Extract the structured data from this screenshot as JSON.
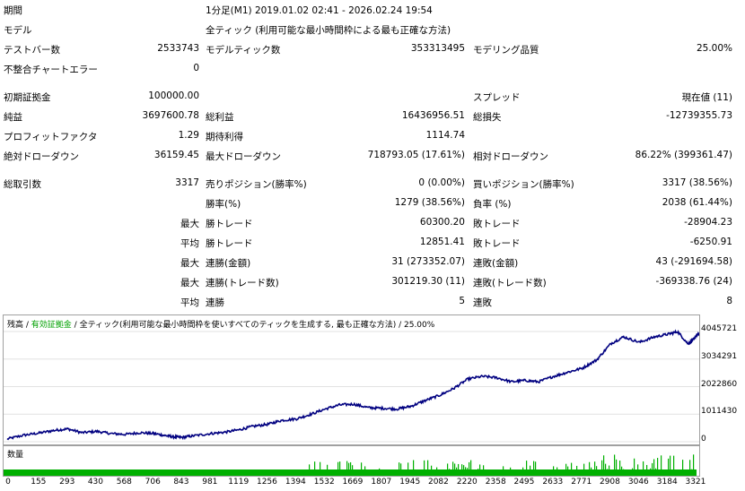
{
  "report": {
    "rows": [
      {
        "label": "期間",
        "value": "1分足(M1) 2019.01.02 02:41 - 2026.02.24 19:54",
        "top": 4
      },
      {
        "label": "モデル",
        "value": "全ティック (利用可能な最小時間枠による最も正確な方法)",
        "top": 26
      },
      {
        "label": "テストバー数",
        "value": "2533743",
        "label2": "モデルティック数",
        "value2": "353313495",
        "label3": "モデリング品質",
        "value3": "25.00%",
        "top": 48
      },
      {
        "label": "不整合チャートエラー",
        "value": "0",
        "top": 70
      },
      {
        "label": "初期証拠金",
        "value": "100000.00",
        "label3": "スプレッド",
        "value3": "現在値 (11)",
        "top": 101
      },
      {
        "label": "純益",
        "value": "3697600.78",
        "label2": "総利益",
        "value2": "16436956.51",
        "label3": "総損失",
        "value3": "-12739355.73",
        "top": 123
      },
      {
        "label": "プロフィットファクタ",
        "value": "1.29",
        "label2": "期待利得",
        "value2": "1114.74",
        "top": 145
      },
      {
        "label": "絶対ドローダウン",
        "value": "36159.45",
        "label2": "最大ドローダウン",
        "value2": "718793.05 (17.61%)",
        "label3": "相対ドローダウン",
        "value3": "86.22% (399361.47)",
        "top": 167
      },
      {
        "label": "総取引数",
        "value": "3317",
        "label2": "売りポジション(勝率%)",
        "value2": "0 (0.00%)",
        "label3": "買いポジション(勝率%)",
        "value3": "3317 (38.56%)",
        "top": 198
      },
      {
        "label2": "勝率(%)",
        "value2": "1279 (38.56%)",
        "label3": "負率 (%)",
        "value3": "2038 (61.44%)",
        "top": 220
      },
      {
        "prefix": "最大",
        "label2": "勝トレード",
        "value2": "60300.20",
        "label3": "敗トレード",
        "value3": "-28904.23",
        "top": 242
      },
      {
        "prefix": "平均",
        "label2": "勝トレード",
        "value2": "12851.41",
        "label3": "敗トレード",
        "value3": "-6250.91",
        "top": 264
      },
      {
        "prefix": "最大",
        "label2": "連勝(金額)",
        "value2": "31 (273352.07)",
        "label3": "連敗(金額)",
        "value3": "43 (-291694.58)",
        "top": 286
      },
      {
        "prefix": "最大",
        "label2": "連勝(トレード数)",
        "value2": "301219.30 (11)",
        "label3": "連敗(トレード数)",
        "value3": "-369338.76 (24)",
        "top": 308
      },
      {
        "prefix": "平均",
        "label2": "連勝",
        "value2": "5",
        "label3": "連敗",
        "value3": "8",
        "top": 330
      }
    ]
  },
  "chart": {
    "title_balance": "残高",
    "title_sep1": " / ",
    "title_equity": "有効証拠金",
    "title_sep2": " / ",
    "title_rest": "全ティック(利用可能な最小時間枠を使いすべてのティックを生成する, 最も正確な方法) / 25.00%",
    "balance_color": "#000080",
    "equity_color": "#00a000",
    "volume_label": "数量",
    "volume_color": "#00b000"
  },
  "chart_data": {
    "type": "line",
    "title": "",
    "y_ticks": [
      "4045721",
      "3034291",
      "2022860",
      "1011430",
      "0"
    ],
    "x_ticks": [
      "0",
      "155",
      "293",
      "430",
      "568",
      "706",
      "843",
      "981",
      "1119",
      "1256",
      "1394",
      "1532",
      "1669",
      "1807",
      "1945",
      "2082",
      "2220",
      "2358",
      "2495",
      "2633",
      "2771",
      "2908",
      "3046",
      "3184",
      "3321"
    ],
    "ylim": [
      0,
      4045721
    ],
    "xlim": [
      0,
      3317
    ],
    "series": [
      {
        "values": [
          [
            0,
            100000
          ],
          [
            80,
            240000
          ],
          [
            155,
            320000
          ],
          [
            230,
            420000
          ],
          [
            293,
            470000
          ],
          [
            360,
            330000
          ],
          [
            430,
            380000
          ],
          [
            500,
            300000
          ],
          [
            568,
            270000
          ],
          [
            640,
            330000
          ],
          [
            706,
            300000
          ],
          [
            760,
            230000
          ],
          [
            800,
            180000
          ],
          [
            843,
            160000
          ],
          [
            900,
            220000
          ],
          [
            981,
            300000
          ],
          [
            1050,
            350000
          ],
          [
            1119,
            440000
          ],
          [
            1180,
            560000
          ],
          [
            1256,
            640000
          ],
          [
            1320,
            780000
          ],
          [
            1394,
            840000
          ],
          [
            1460,
            1000000
          ],
          [
            1532,
            1200000
          ],
          [
            1600,
            1350000
          ],
          [
            1669,
            1380000
          ],
          [
            1740,
            1250000
          ],
          [
            1807,
            1230000
          ],
          [
            1880,
            1200000
          ],
          [
            1945,
            1300000
          ],
          [
            2010,
            1500000
          ],
          [
            2082,
            1700000
          ],
          [
            2150,
            1950000
          ],
          [
            2220,
            2300000
          ],
          [
            2290,
            2400000
          ],
          [
            2358,
            2350000
          ],
          [
            2430,
            2200000
          ],
          [
            2495,
            2250000
          ],
          [
            2560,
            2200000
          ],
          [
            2633,
            2400000
          ],
          [
            2700,
            2550000
          ],
          [
            2771,
            2700000
          ],
          [
            2840,
            3000000
          ],
          [
            2908,
            3600000
          ],
          [
            2970,
            3850000
          ],
          [
            3046,
            3650000
          ],
          [
            3120,
            3850000
          ],
          [
            3184,
            3950000
          ],
          [
            3230,
            4040000
          ],
          [
            3280,
            3600000
          ],
          [
            3300,
            3700000
          ],
          [
            3321,
            3900000
          ],
          [
            3340,
            4000000
          ]
        ]
      }
    ]
  }
}
